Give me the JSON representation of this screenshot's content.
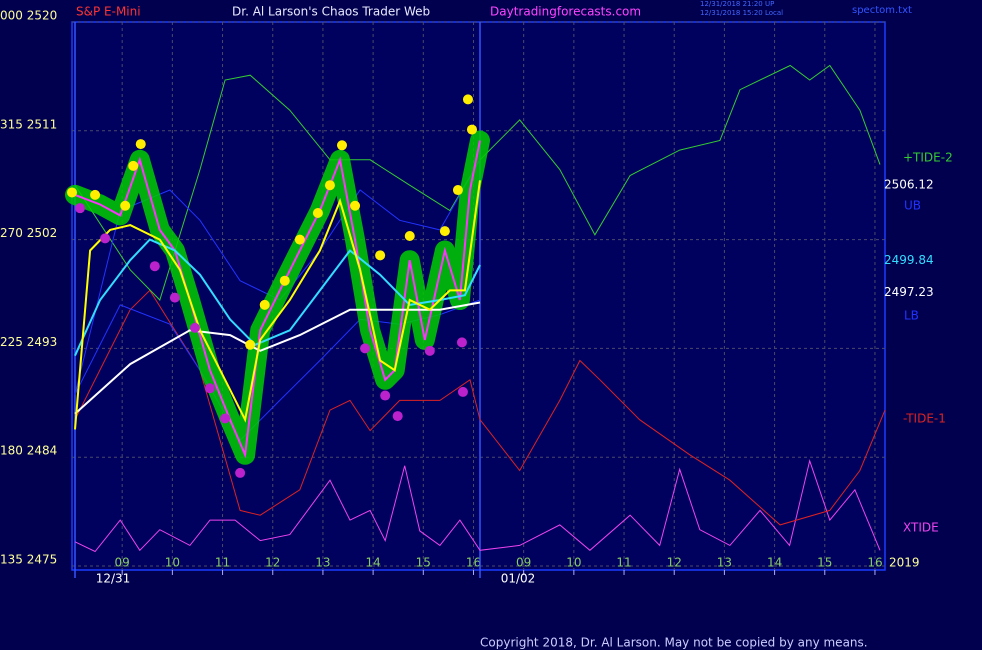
{
  "chart_data": {
    "type": "line",
    "subtitle": "S&P E-Mini",
    "title": "Dr. Al Larson's Chaos Trader Web",
    "website": "Daytradingforecasts.com",
    "timestamps": [
      "12/31/2018 21:20 UP",
      "12/31/2018 15:20 Local"
    ],
    "file": "spectom.txt",
    "copyright": "Copyright 2018, Dr. Al Larson. May not be copied by any means.",
    "year_label": "2019",
    "xlim": [
      0,
      16.2
    ],
    "xticks": [
      {
        "value": 1,
        "label": "09"
      },
      {
        "value": 2,
        "label": "10"
      },
      {
        "value": 3,
        "label": "11"
      },
      {
        "value": 4,
        "label": "12"
      },
      {
        "value": 5,
        "label": "13"
      },
      {
        "value": 6,
        "label": "14"
      },
      {
        "value": 7,
        "label": "15"
      },
      {
        "value": 8,
        "label": "16"
      },
      {
        "value": 9,
        "label": "09"
      },
      {
        "value": 10,
        "label": "10"
      },
      {
        "value": 11,
        "label": "11"
      },
      {
        "value": 12,
        "label": "12"
      },
      {
        "value": 13,
        "label": "13"
      },
      {
        "value": 14,
        "label": "14"
      },
      {
        "value": 15,
        "label": "15"
      },
      {
        "value": 16,
        "label": "16"
      }
    ],
    "dates": [
      {
        "value": 0.06,
        "label": "12/31"
      },
      {
        "value": 8.13,
        "label": "01/02"
      }
    ],
    "ylim": [
      2475,
      2520
    ],
    "yticks": [
      {
        "value": 2520,
        "label": "000 2520"
      },
      {
        "value": 2511,
        "label": "315 2511"
      },
      {
        "value": 2502,
        "label": "270 2502"
      },
      {
        "value": 2493,
        "label": "225 2493"
      },
      {
        "value": 2484,
        "label": "180 2484"
      },
      {
        "value": 2475,
        "label": "135 2475"
      }
    ],
    "grid": true,
    "price_levels": [
      2506.12,
      2499.84,
      2497.23
    ],
    "series": [
      {
        "color": "#ff33ff",
        "highlight": "#00cc00",
        "x": [
          0.06,
          0.56,
          0.96,
          1.35,
          1.75,
          2.05,
          2.35,
          2.75,
          3.15,
          3.45,
          3.75,
          4.14,
          4.54,
          4.94,
          5.34,
          5.64,
          5.94,
          6.24,
          6.43,
          6.73,
          7.03,
          7.43,
          7.73,
          7.93,
          8.13
        ],
        "values": [
          2505.7,
          2504.9,
          2504.0,
          2508.6,
          2502.8,
          2501.1,
          2497.0,
          2491.2,
          2487.1,
          2484.2,
          2494.5,
          2497.8,
          2501.1,
          2504.4,
          2508.6,
          2502.0,
          2494.5,
          2490.4,
          2491.2,
          2500.3,
          2493.7,
          2501.1,
          2497.0,
          2506.1,
          2510.2
        ]
      },
      {
        "color": "#ffff00",
        "x": [
          0.06,
          0.36,
          0.76,
          1.16,
          1.75,
          2.15,
          2.55,
          3.05,
          3.45,
          3.75,
          4.34,
          4.94,
          5.34,
          5.74,
          6.14,
          6.43,
          6.73,
          7.13,
          7.53,
          7.83,
          8.13
        ],
        "values": [
          2486.3,
          2501.1,
          2502.8,
          2503.2,
          2502.0,
          2499.5,
          2494.5,
          2490.4,
          2487.1,
          2493.7,
          2497.0,
          2501.1,
          2505.2,
          2499.5,
          2492.0,
          2491.2,
          2497.0,
          2496.2,
          2497.8,
          2497.8,
          2506.9
        ]
      },
      {
        "color": "#33ddff",
        "x": [
          0.06,
          0.56,
          1.16,
          1.55,
          2.05,
          2.55,
          3.15,
          3.65,
          4.34,
          4.94,
          5.54,
          6.14,
          6.73,
          7.33,
          7.83,
          8.13
        ],
        "values": [
          2492.4,
          2497.0,
          2500.3,
          2502.0,
          2501.1,
          2499.1,
          2495.4,
          2493.3,
          2494.5,
          2497.8,
          2501.1,
          2499.1,
          2496.6,
          2497.0,
          2497.4,
          2499.9
        ]
      },
      {
        "color": "#ffffff",
        "x": [
          0.06,
          1.16,
          2.35,
          3.15,
          3.75,
          4.54,
          5.54,
          6.53,
          7.33,
          8.13
        ],
        "values": [
          2487.6,
          2491.7,
          2494.5,
          2494.1,
          2492.8,
          2494.1,
          2496.2,
          2496.2,
          2496.2,
          2496.8
        ]
      },
      {
        "name": "UB",
        "color": "#2233ff",
        "x": [
          0.06,
          0.96,
          1.95,
          2.55,
          3.35,
          4.14,
          4.94,
          5.74,
          6.53,
          7.33,
          8.13
        ],
        "values": [
          2489.2,
          2504.4,
          2506.1,
          2503.6,
          2498.6,
          2497.0,
          2501.1,
          2506.1,
          2503.6,
          2502.8,
          2508.6
        ]
      },
      {
        "name": "LB",
        "color": "#2233ff",
        "x": [
          0.06,
          0.96,
          1.95,
          2.55,
          3.35,
          4.14,
          4.94,
          5.74,
          6.53,
          7.33,
          8.13
        ],
        "values": [
          2489.2,
          2496.6,
          2495.0,
          2491.2,
          2485.4,
          2488.7,
          2492.0,
          2495.4,
          2495.0,
          2495.8,
          2497.0
        ]
      },
      {
        "name": "+TIDE-2",
        "color": "#33cc33",
        "x": [
          0.06,
          1.16,
          1.75,
          2.55,
          3.05,
          3.55,
          4.34,
          5.14,
          5.94,
          6.73,
          7.53,
          8.13,
          8.92,
          9.72,
          10.42,
          11.12,
          12.11,
          12.91,
          13.31,
          14.31,
          14.7,
          15.1,
          15.7,
          16.1
        ],
        "values": [
          2506.5,
          2499.5,
          2497.0,
          2507.8,
          2515.2,
          2515.6,
          2512.7,
          2508.6,
          2508.6,
          2506.5,
          2504.4,
          2508.6,
          2511.9,
          2507.8,
          2502.4,
          2507.3,
          2509.4,
          2510.2,
          2514.4,
          2516.4,
          2515.2,
          2516.4,
          2512.7,
          2508.2
        ]
      },
      {
        "name": "-TIDE-1",
        "color": "#dd2222",
        "x": [
          0.06,
          1.16,
          1.55,
          2.55,
          3.35,
          3.75,
          4.54,
          5.14,
          5.54,
          5.94,
          6.53,
          7.33,
          7.93,
          8.13,
          8.92,
          9.72,
          10.12,
          10.52,
          11.31,
          12.31,
          13.11,
          14.11,
          15.1,
          15.7,
          16.2
        ],
        "values": [
          2487.1,
          2496.2,
          2497.8,
          2491.2,
          2479.6,
          2479.2,
          2481.3,
          2487.9,
          2488.7,
          2486.2,
          2488.7,
          2488.7,
          2490.4,
          2487.1,
          2482.9,
          2488.7,
          2492.0,
          2490.4,
          2487.1,
          2484.2,
          2482.1,
          2478.4,
          2479.6,
          2482.9,
          2487.9
        ]
      },
      {
        "name": "XTIDE",
        "color": "#ee44ee",
        "x": [
          0.06,
          0.46,
          0.96,
          1.35,
          1.75,
          2.35,
          2.75,
          3.25,
          3.75,
          4.34,
          5.14,
          5.54,
          5.94,
          6.24,
          6.63,
          6.93,
          7.33,
          7.73,
          8.13,
          8.92,
          9.72,
          10.32,
          11.12,
          11.71,
          12.11,
          12.51,
          13.11,
          13.71,
          14.3,
          14.7,
          15.1,
          15.6,
          16.1
        ],
        "values": [
          2477.0,
          2476.2,
          2478.8,
          2476.3,
          2478.0,
          2476.7,
          2478.8,
          2478.8,
          2477.1,
          2477.6,
          2482.1,
          2478.8,
          2479.6,
          2477.1,
          2483.3,
          2477.9,
          2476.7,
          2478.8,
          2476.3,
          2476.7,
          2478.4,
          2476.3,
          2479.2,
          2476.7,
          2483.0,
          2478.0,
          2476.7,
          2479.6,
          2476.7,
          2483.7,
          2478.8,
          2481.3,
          2476.3
        ]
      }
    ],
    "highs": {
      "color": "#ffee00",
      "x": [
        0,
        0.46,
        1.06,
        1.37,
        1.22,
        3.55,
        3.84,
        4.24,
        4.54,
        4.9,
        5.14,
        5.38,
        5.64,
        6.14,
        6.73,
        7.43,
        7.69,
        7.89,
        7.97
      ],
      "values": [
        2505.9,
        2505.7,
        2504.8,
        2509.9,
        2508.1,
        2493.3,
        2496.6,
        2498.6,
        2502.0,
        2504.2,
        2506.5,
        2509.8,
        2504.8,
        2500.7,
        2502.3,
        2502.7,
        2506.1,
        2513.6,
        2511.1
      ]
    },
    "lows": {
      "color": "#bb22cc",
      "x": [
        0.16,
        0.66,
        1.65,
        2.05,
        2.45,
        2.75,
        3.05,
        3.35,
        5.84,
        6.24,
        6.49,
        7.13,
        7.77,
        7.79
      ],
      "values": [
        2504.6,
        2502.1,
        2499.8,
        2497.2,
        2494.7,
        2489.7,
        2487.2,
        2482.7,
        2493.0,
        2489.1,
        2487.4,
        2492.8,
        2493.5,
        2489.4
      ]
    }
  }
}
